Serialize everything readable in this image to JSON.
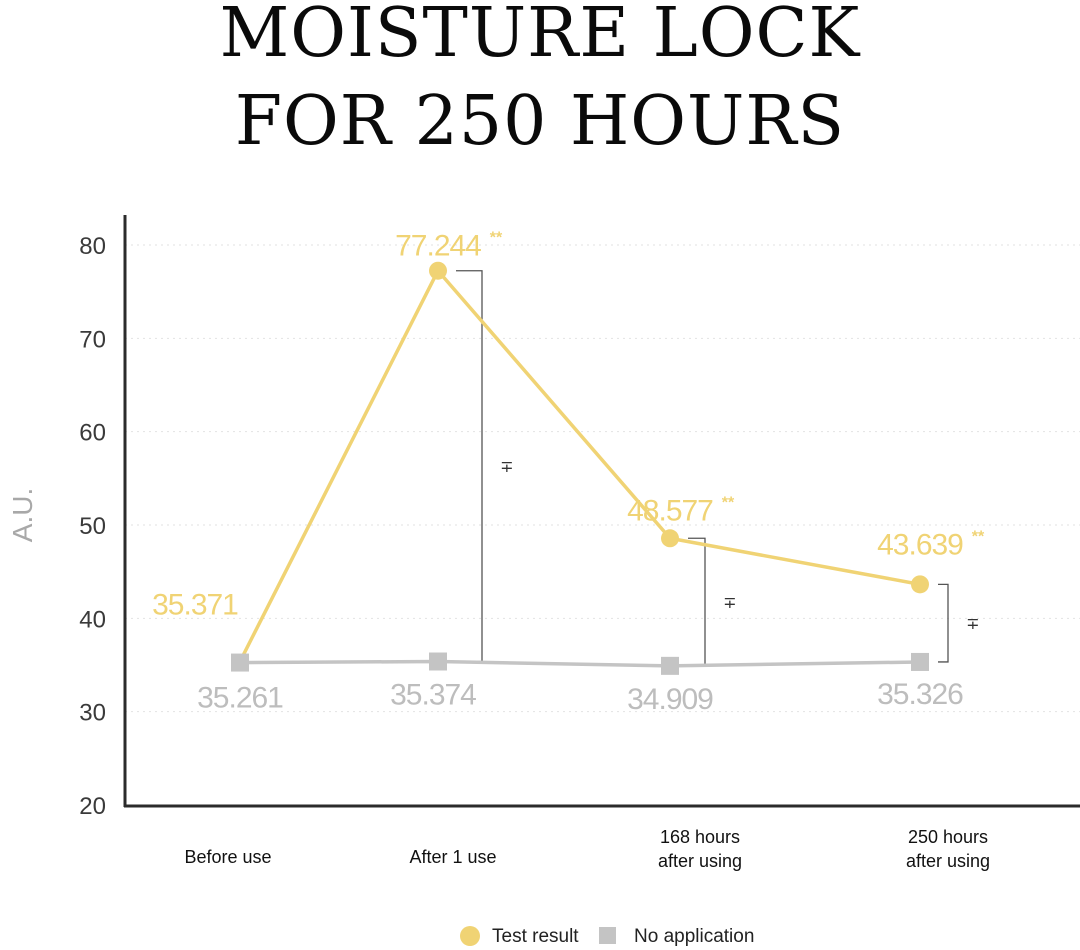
{
  "title": {
    "line1": "MOISTURE LOCK",
    "line2": "FOR 250 HOURS"
  },
  "chart_data": {
    "type": "line",
    "ylabel": "A.U.",
    "xlabel": "",
    "ylim": [
      20,
      80
    ],
    "yticks": [
      "20",
      "30",
      "40",
      "50",
      "60",
      "70",
      "80"
    ],
    "grid": "horizontal dotted",
    "categories": [
      [
        "Before use"
      ],
      [
        "After 1 use"
      ],
      [
        "168 hours",
        "after using"
      ],
      [
        "250 hours",
        "after using"
      ]
    ],
    "series": [
      {
        "name": "Test result",
        "color": "#f0d374",
        "marker": "circle",
        "values": [
          35.371,
          77.244,
          48.577,
          43.639
        ],
        "labels": [
          "35.371",
          "77.244",
          "48.577",
          "43.639"
        ],
        "significance": [
          "",
          "**",
          "**",
          "**"
        ]
      },
      {
        "name": "No application",
        "color": "#c4c4c4",
        "marker": "square",
        "values": [
          35.261,
          35.374,
          34.909,
          35.326
        ],
        "labels": [
          "35.261",
          "35.374",
          "34.909",
          "35.326"
        ]
      }
    ],
    "comparison_marks": [
      "",
      "∓",
      "∓",
      "∓"
    ],
    "legend_position": "bottom-center"
  }
}
